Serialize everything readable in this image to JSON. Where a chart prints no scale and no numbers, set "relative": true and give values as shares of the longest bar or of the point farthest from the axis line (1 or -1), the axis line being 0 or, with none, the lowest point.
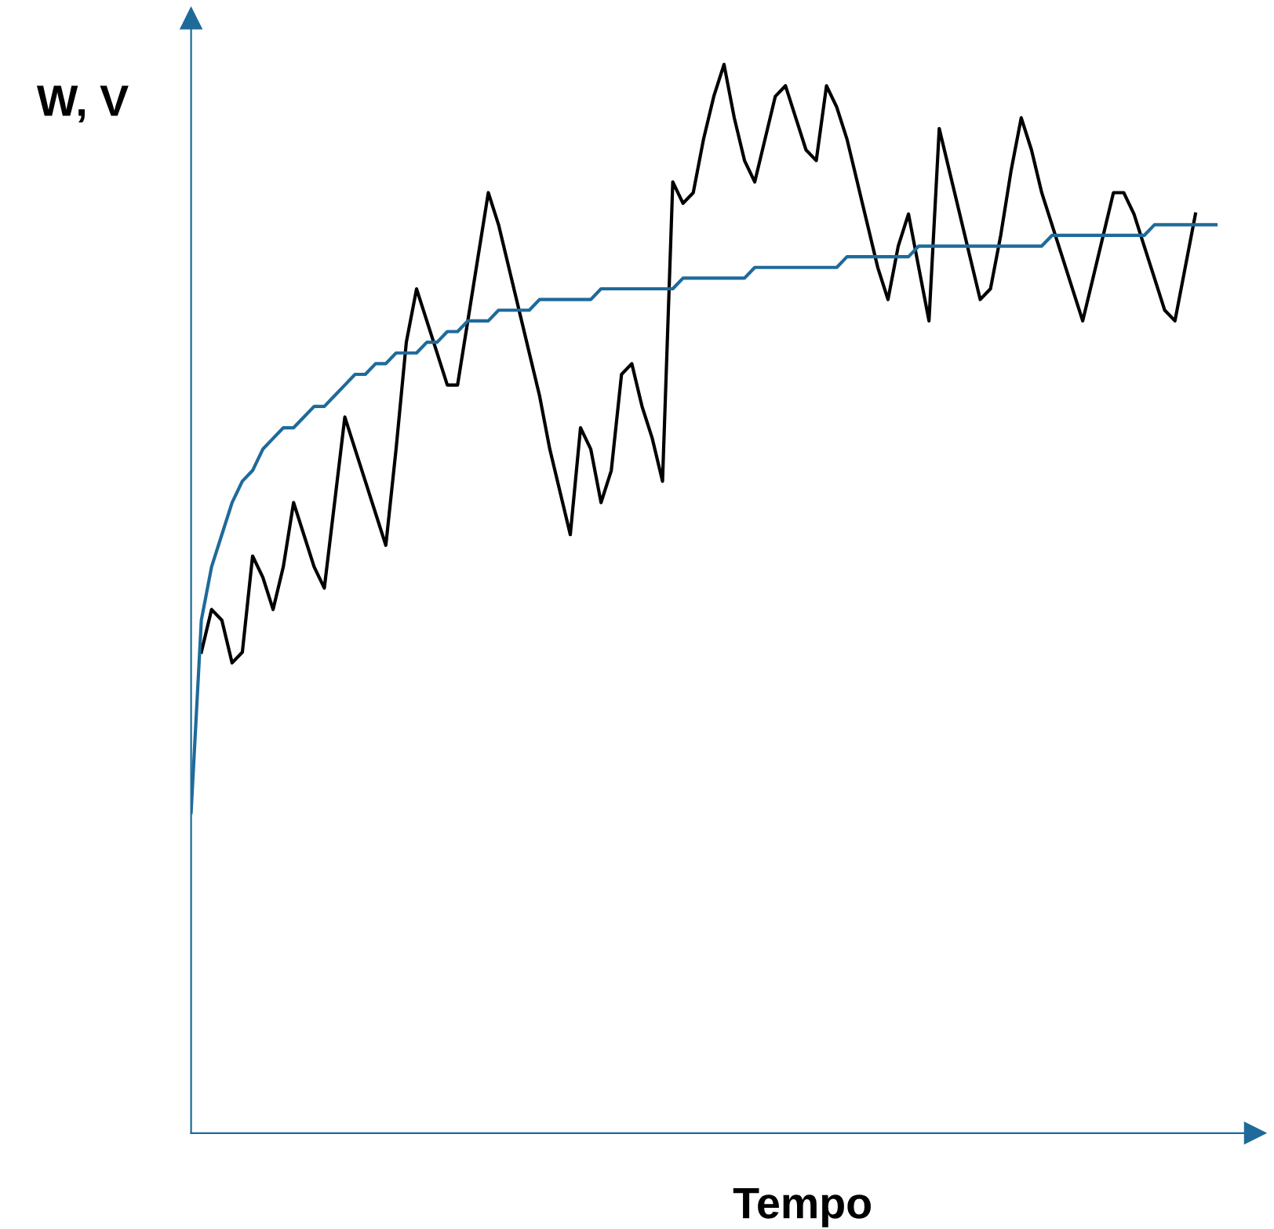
{
  "chart_data": {
    "type": "line",
    "relative": true,
    "xlabel": "Tempo",
    "ylabel": "W, V",
    "tick_labels": false,
    "marker": "none",
    "line_style": "solid",
    "categories": [
      null,
      null,
      null,
      null,
      null,
      null,
      null,
      null,
      null,
      null,
      null,
      null,
      null,
      null,
      null,
      null,
      null,
      null,
      null,
      null,
      null,
      null,
      null,
      null,
      null,
      null,
      null,
      null,
      null,
      null,
      null,
      null,
      null,
      null,
      null,
      null,
      null,
      null,
      null,
      null,
      null,
      null,
      null,
      null,
      null,
      null,
      null,
      null,
      null,
      null,
      null,
      null,
      null,
      null,
      null,
      null,
      null,
      null,
      null,
      null,
      null,
      null,
      null,
      null,
      null,
      null,
      null,
      null,
      null,
      null,
      null,
      null,
      null,
      null,
      null,
      null,
      null,
      null,
      null,
      null,
      null,
      null,
      null,
      null,
      null,
      null,
      null,
      null,
      null,
      null,
      null,
      null,
      null,
      null,
      null,
      null,
      null,
      null,
      null,
      null,
      null
    ],
    "series": [
      {
        "color": "#000000",
        "values": [
          null,
          0.45,
          0.49,
          0.48,
          0.44,
          0.45,
          0.54,
          0.52,
          0.49,
          0.53,
          0.59,
          0.56,
          0.53,
          0.51,
          0.59,
          0.67,
          0.64,
          0.61,
          0.58,
          0.55,
          0.64,
          0.74,
          0.79,
          0.76,
          0.73,
          0.7,
          0.7,
          0.76,
          0.82,
          0.88,
          0.85,
          0.81,
          0.77,
          0.73,
          0.69,
          0.64,
          0.6,
          0.56,
          0.66,
          0.64,
          0.59,
          0.62,
          0.71,
          0.72,
          0.68,
          0.65,
          0.61,
          0.89,
          0.87,
          0.88,
          0.93,
          0.97,
          1.0,
          0.95,
          0.91,
          0.89,
          0.93,
          0.97,
          0.98,
          0.95,
          0.92,
          0.91,
          0.98,
          0.96,
          0.93,
          0.89,
          0.85,
          0.81,
          0.78,
          0.83,
          0.86,
          0.81,
          0.76,
          0.94,
          0.9,
          0.86,
          0.82,
          0.78,
          0.79,
          0.84,
          0.9,
          0.95,
          0.92,
          0.88,
          0.85,
          0.82,
          0.79,
          0.76,
          0.8,
          0.84,
          0.88,
          0.88,
          0.86,
          0.83,
          0.8,
          0.77,
          0.76,
          0.81,
          0.86,
          null,
          null
        ]
      },
      {
        "color": "#1f6a9a",
        "values": [
          0.3,
          0.48,
          0.53,
          0.56,
          0.59,
          0.61,
          0.62,
          0.64,
          0.65,
          0.66,
          0.66,
          0.67,
          0.68,
          0.68,
          0.69,
          0.7,
          0.71,
          0.71,
          0.72,
          0.72,
          0.73,
          0.73,
          0.73,
          0.74,
          0.74,
          0.75,
          0.75,
          0.76,
          0.76,
          0.76,
          0.77,
          0.77,
          0.77,
          0.77,
          0.78,
          0.78,
          0.78,
          0.78,
          0.78,
          0.78,
          0.79,
          0.79,
          0.79,
          0.79,
          0.79,
          0.79,
          0.79,
          0.79,
          0.8,
          0.8,
          0.8,
          0.8,
          0.8,
          0.8,
          0.8,
          0.81,
          0.81,
          0.81,
          0.81,
          0.81,
          0.81,
          0.81,
          0.81,
          0.81,
          0.82,
          0.82,
          0.82,
          0.82,
          0.82,
          0.82,
          0.82,
          0.83,
          0.83,
          0.83,
          0.83,
          0.83,
          0.83,
          0.83,
          0.83,
          0.83,
          0.83,
          0.83,
          0.83,
          0.83,
          0.84,
          0.84,
          0.84,
          0.84,
          0.84,
          0.84,
          0.84,
          0.84,
          0.84,
          0.84,
          0.85,
          0.85,
          0.85,
          0.85,
          0.85,
          0.85,
          0.85
        ]
      }
    ]
  }
}
